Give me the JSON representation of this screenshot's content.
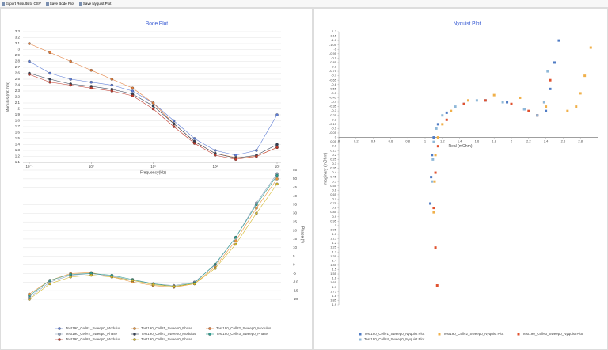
{
  "toolbar": [
    "Export Results to CSV",
    "Save Bode Plot",
    "Save Nyquist Plot"
  ],
  "chart_data": [
    {
      "type": "line",
      "title": "Bode Plot",
      "x_label": "Frequency(Hz)",
      "y_label": "Modulus (mOhm)",
      "y2_label": "Phase (°)",
      "log_x": true,
      "grid": true,
      "x": [
        0.1,
        0.2154,
        0.4642,
        1,
        2.154,
        4.642,
        10,
        21.54,
        46.42,
        100,
        215.4,
        464.2,
        1000
      ],
      "xlim": [
        0.1,
        1000
      ],
      "xticks": [
        {
          "value": 0.1,
          "label": "10⁻¹"
        },
        {
          "value": 1,
          "label": "10⁰"
        },
        {
          "value": 10,
          "label": "10¹"
        },
        {
          "value": 100,
          "label": "10²"
        },
        {
          "value": 1000,
          "label": "10³"
        }
      ],
      "ylim": [
        1.1,
        3.3
      ],
      "yticks": [
        3.3,
        3.2,
        3.1,
        3,
        2.9,
        2.8,
        2.7,
        2.6,
        2.5,
        2.4,
        2.3,
        2.2,
        2.1,
        2,
        1.9,
        1.8,
        1.7,
        1.6,
        1.5,
        1.4,
        1.3,
        1.2,
        1.1
      ],
      "y2lim": [
        -20,
        55
      ],
      "y2ticks": [
        55,
        50,
        45,
        40,
        35,
        30,
        25,
        20,
        15,
        10,
        5,
        0,
        -5,
        -10,
        -15,
        -20
      ],
      "series": [
        {
          "name": "Test190_Cell#1_Sweep0_Modulus",
          "color": "#5b7bd5",
          "values": [
            2.8,
            2.6,
            2.5,
            2.45,
            2.4,
            2.3,
            2.1,
            1.8,
            1.5,
            1.3,
            1.22,
            1.3,
            1.9
          ]
        },
        {
          "name": "Test190_Cell#1_Sweep0_Phase",
          "color": "#e8943a",
          "axis": "y2",
          "values": [
            -17,
            -9,
            -5,
            -4.5,
            -7,
            -10,
            -12,
            -13,
            -11,
            -1,
            14,
            33,
            50
          ]
        },
        {
          "name": "Test190_Cell#2_Sweep0_Modulus",
          "color": "#e07b39",
          "values": [
            3.1,
            2.95,
            2.8,
            2.65,
            2.5,
            2.35,
            2.1,
            1.75,
            1.45,
            1.25,
            1.18,
            1.2,
            1.35
          ]
        },
        {
          "name": "Test190_Cell#2_Sweep0_Phase",
          "color": "#8fa3bf",
          "axis": "y2",
          "values": [
            -19,
            -10,
            -6,
            -5,
            -6.5,
            -9,
            -11,
            -12,
            -10,
            0,
            16,
            36,
            53
          ]
        },
        {
          "name": "Test190_Cell#3_Sweep0_Modulus",
          "color": "#333f55",
          "values": [
            2.6,
            2.5,
            2.42,
            2.38,
            2.33,
            2.25,
            2.05,
            1.75,
            1.45,
            1.25,
            1.17,
            1.22,
            1.4
          ]
        },
        {
          "name": "Test190_Cell#3_Sweep0_Phase",
          "color": "#2f9c8f",
          "axis": "y2",
          "values": [
            -18,
            -9,
            -5.5,
            -5,
            -6,
            -8.5,
            -11,
            -12.5,
            -10.5,
            0.5,
            16,
            35,
            52
          ]
        },
        {
          "name": "Test190_Cell#4_Sweep0_Modulus",
          "color": "#c0392b",
          "values": [
            2.58,
            2.45,
            2.4,
            2.35,
            2.3,
            2.22,
            2,
            1.7,
            1.42,
            1.22,
            1.15,
            1.2,
            1.35
          ]
        },
        {
          "name": "Test190_Cell#4_Sweep0_Phase",
          "color": "#d4b82c",
          "axis": "y2",
          "values": [
            -20,
            -11,
            -7,
            -6,
            -7,
            -9,
            -11.5,
            -12.5,
            -11,
            -2,
            12,
            30,
            47
          ]
        }
      ]
    },
    {
      "type": "scatter",
      "title": "Nyquist Plot",
      "x_label": "Real (mOhm)",
      "y_label": "Imaginary (mOhm)",
      "grid": false,
      "xlim": [
        0,
        3
      ],
      "xticks": [
        0,
        0.2,
        0.4,
        0.6,
        0.8,
        1,
        1.2,
        1.4,
        1.6,
        1.8,
        2,
        2.2,
        2.4,
        2.6,
        2.8
      ],
      "ylim": [
        1.9,
        -1.2
      ],
      "yticks": [
        -1.2,
        -1.15,
        -1.1,
        -1.05,
        -1,
        -0.95,
        -0.9,
        -0.85,
        -0.8,
        -0.75,
        -0.7,
        -0.65,
        -0.6,
        -0.55,
        -0.5,
        -0.45,
        -0.4,
        -0.35,
        -0.3,
        -0.25,
        -0.2,
        -0.15,
        -0.1,
        -0.05,
        0,
        0.05,
        0.1,
        0.15,
        0.2,
        0.25,
        0.3,
        0.35,
        0.4,
        0.45,
        0.5,
        0.55,
        0.6,
        0.65,
        0.7,
        0.75,
        0.8,
        0.85,
        0.9,
        0.95,
        1,
        1.05,
        1.1,
        1.15,
        1.2,
        1.25,
        1.3,
        1.35,
        1.4,
        1.45,
        1.5,
        1.55,
        1.6,
        1.65,
        1.7,
        1.75,
        1.8,
        1.85,
        1.9
      ],
      "series": [
        {
          "name": "Test190_Cell#1_Sweep0_Nyquist Plot",
          "color": "#4f7bc4",
          "x": [
            1.06,
            1.07,
            1.08,
            1.1,
            1.15,
            1.25,
            1.45,
            1.7,
            1.95,
            2.15,
            2.3,
            2.4,
            2.45,
            2.5,
            2.55
          ],
          "values": [
            0.75,
            0.45,
            0.2,
            0,
            -0.15,
            -0.28,
            -0.38,
            -0.42,
            -0.4,
            -0.32,
            -0.25,
            -0.3,
            -0.55,
            -0.85,
            -1.1
          ]
        },
        {
          "name": "Test190_Cell#2_Sweep0_Nyquist Plot",
          "color": "#f0b04a",
          "x": [
            1.1,
            1.11,
            1.12,
            1.15,
            1.2,
            1.3,
            1.5,
            1.8,
            2.1,
            2.4,
            2.65,
            2.75,
            2.8,
            2.85,
            2.92
          ],
          "values": [
            0.85,
            0.5,
            0.2,
            0,
            -0.15,
            -0.3,
            -0.42,
            -0.48,
            -0.45,
            -0.35,
            -0.3,
            -0.35,
            -0.5,
            -0.7,
            -1.02
          ]
        },
        {
          "name": "Test190_Cell#3_Sweep0_Nyquist Plot",
          "color": "#e0522f",
          "x": [
            1.14,
            1.12,
            1.1,
            1.12,
            1.15,
            1.25,
            1.45,
            1.7,
            2,
            2.2,
            2.3,
            2.38,
            2.45
          ],
          "values": [
            1.68,
            1.25,
            0.8,
            0.4,
            0.1,
            -0.2,
            -0.38,
            -0.42,
            -0.38,
            -0.3,
            -0.25,
            -0.4,
            -0.65
          ]
        },
        {
          "name": "Test190_Cell#4_Sweep0_Nyquist Plot",
          "color": "#8fb8d8",
          "x": [
            1.08,
            1.09,
            1.1,
            1.13,
            1.2,
            1.35,
            1.6,
            1.9,
            2.15,
            2.3,
            2.38,
            2.42
          ],
          "values": [
            0.5,
            0.25,
            0.05,
            -0.1,
            -0.25,
            -0.35,
            -0.42,
            -0.4,
            -0.32,
            -0.25,
            -0.4,
            -0.75
          ]
        }
      ]
    }
  ]
}
